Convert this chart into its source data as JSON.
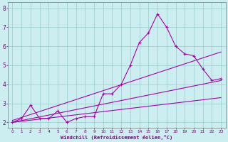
{
  "xlabel": "Windchill (Refroidissement éolien,°C)",
  "line_color": "#aa00aa",
  "bg_color": "#cceef0",
  "grid_color": "#99cccc",
  "x_ticks": [
    0,
    1,
    2,
    3,
    4,
    5,
    6,
    7,
    8,
    9,
    10,
    11,
    12,
    13,
    14,
    15,
    16,
    17,
    18,
    19,
    20,
    21,
    22,
    23
  ],
  "y_ticks": [
    2,
    3,
    4,
    5,
    6,
    7,
    8
  ],
  "xlim": [
    -0.5,
    23.5
  ],
  "ylim": [
    1.7,
    8.3
  ],
  "series": [
    {
      "x": [
        0,
        1,
        2,
        3,
        4,
        5,
        6,
        7,
        8,
        9,
        10,
        11,
        12,
        13,
        14,
        15,
        16,
        17,
        18,
        19,
        20,
        21,
        22,
        23
      ],
      "y": [
        2.0,
        2.2,
        2.9,
        2.2,
        2.2,
        2.6,
        2.0,
        2.2,
        2.3,
        2.3,
        3.5,
        3.5,
        4.0,
        5.0,
        6.2,
        6.7,
        7.7,
        7.0,
        6.0,
        5.6,
        5.5,
        4.8,
        4.2,
        4.3
      ],
      "with_markers": true
    },
    {
      "x": [
        0,
        23
      ],
      "y": [
        2.0,
        4.2
      ],
      "with_markers": false
    },
    {
      "x": [
        0,
        23
      ],
      "y": [
        2.1,
        5.7
      ],
      "with_markers": false
    },
    {
      "x": [
        0,
        23
      ],
      "y": [
        2.0,
        3.3
      ],
      "with_markers": false
    }
  ]
}
